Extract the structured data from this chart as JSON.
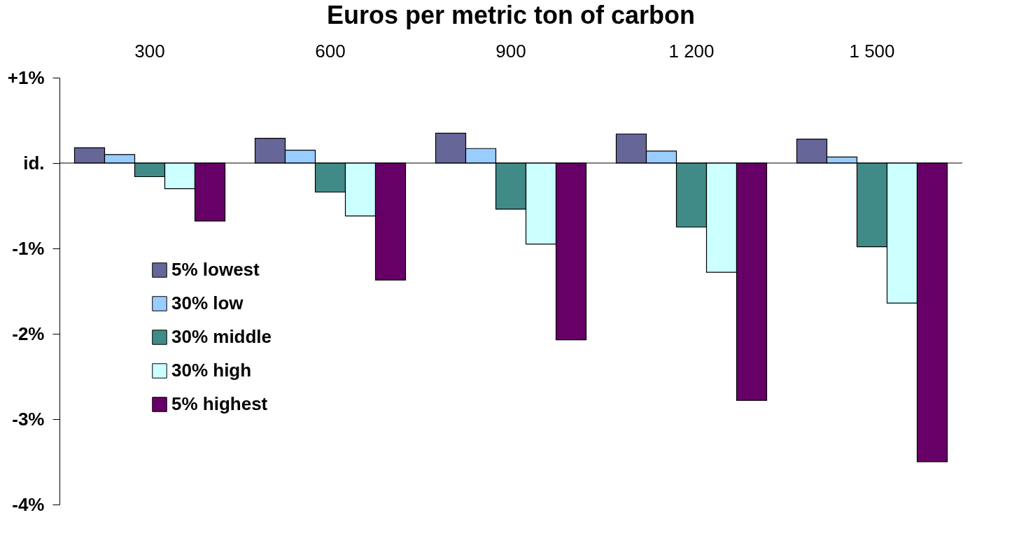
{
  "chart_data": {
    "type": "bar",
    "title": "Euros per metric ton of carbon",
    "categories": [
      "300",
      "600",
      "900",
      "1 200",
      "1 500"
    ],
    "series": [
      {
        "name": "5% lowest",
        "color": "#666699",
        "values": [
          0.18,
          0.29,
          0.35,
          0.34,
          0.28
        ]
      },
      {
        "name": "30% low",
        "color": "#99ccff",
        "values": [
          0.1,
          0.15,
          0.17,
          0.14,
          0.07
        ]
      },
      {
        "name": "30% middle",
        "color": "#408a87",
        "values": [
          -0.16,
          -0.34,
          -0.54,
          -0.75,
          -0.98
        ]
      },
      {
        "name": "30% high",
        "color": "#ccffff",
        "values": [
          -0.3,
          -0.62,
          -0.95,
          -1.28,
          -1.64
        ]
      },
      {
        "name": "5% highest",
        "color": "#660066",
        "values": [
          -0.68,
          -1.37,
          -2.07,
          -2.78,
          -3.5
        ]
      }
    ],
    "ylim": [
      -4,
      1
    ],
    "yticks": [
      {
        "value": 1,
        "label": "+1%"
      },
      {
        "value": 0,
        "label": "id."
      },
      {
        "value": -1,
        "label": "-1%"
      },
      {
        "value": -2,
        "label": "-2%"
      },
      {
        "value": -3,
        "label": "-3%"
      },
      {
        "value": -4,
        "label": "-4%"
      }
    ],
    "legend": "bottom left"
  }
}
